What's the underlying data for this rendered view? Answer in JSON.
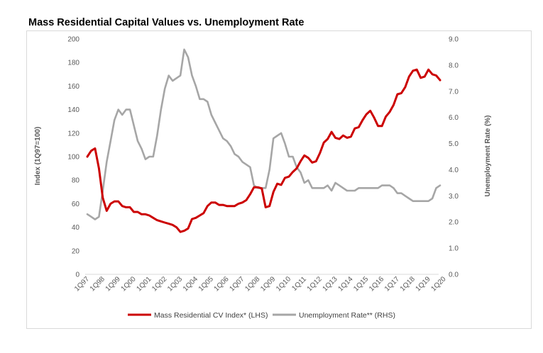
{
  "chart_data": {
    "type": "line",
    "title": "Mass Residential Capital Values vs. Unemployment Rate",
    "ylabel_left": "Index (1Q97=100)",
    "ylabel_right": "Unemployment Rate (%)",
    "ylim_left": [
      0,
      200
    ],
    "ylim_right": [
      0.0,
      9.0
    ],
    "yticks_left": [
      "0",
      "20",
      "40",
      "60",
      "80",
      "100",
      "120",
      "140",
      "160",
      "180",
      "200"
    ],
    "yticks_right": [
      "0.0",
      "1.0",
      "2.0",
      "3.0",
      "4.0",
      "5.0",
      "6.0",
      "7.0",
      "8.0",
      "9.0"
    ],
    "grid": false,
    "legend_position": "bottom",
    "x_tick_labels": [
      "1Q97",
      "1Q98",
      "1Q99",
      "1Q00",
      "1Q01",
      "1Q02",
      "1Q03",
      "1Q04",
      "1Q05",
      "1Q06",
      "1Q07",
      "1Q08",
      "1Q09",
      "1Q10",
      "1Q11",
      "1Q12",
      "1Q13",
      "1Q14",
      "1Q15",
      "1Q16",
      "1Q17",
      "1Q18",
      "1Q19",
      "1Q20"
    ],
    "series": [
      {
        "name": "Mass Residential CV Index* (LHS)",
        "axis": "left",
        "color": "#cc0000",
        "x_start": "1Q97",
        "frequency": "quarterly",
        "values": [
          100,
          105,
          107,
          90,
          65,
          54,
          60,
          62,
          62,
          58,
          57,
          57,
          53,
          53,
          51,
          51,
          50,
          48,
          46,
          45,
          44,
          43,
          42,
          40,
          36,
          37,
          39,
          47,
          48,
          50,
          52,
          58,
          61,
          61,
          59,
          59,
          58,
          58,
          58,
          60,
          61,
          63,
          68,
          74,
          74,
          73,
          57,
          58,
          70,
          77,
          76,
          82,
          83,
          87,
          90,
          96,
          101,
          99,
          95,
          96,
          103,
          112,
          115,
          121,
          116,
          115,
          118,
          116,
          117,
          124,
          125,
          131,
          136,
          139,
          133,
          126,
          126,
          134,
          138,
          144,
          153,
          154,
          159,
          168,
          173,
          174,
          167,
          168,
          174,
          170,
          169,
          165
        ]
      },
      {
        "name": "Unemployment Rate** (RHS)",
        "axis": "right",
        "color": "#a6a6a6",
        "x_start": "1Q97",
        "frequency": "quarterly",
        "values": [
          2.3,
          2.2,
          2.1,
          2.2,
          3.2,
          4.3,
          5.1,
          5.9,
          6.3,
          6.1,
          6.3,
          6.3,
          5.7,
          5.1,
          4.8,
          4.4,
          4.5,
          4.5,
          5.3,
          6.3,
          7.1,
          7.6,
          7.4,
          7.5,
          7.6,
          8.6,
          8.3,
          7.6,
          7.2,
          6.7,
          6.7,
          6.6,
          6.1,
          5.8,
          5.5,
          5.2,
          5.1,
          4.9,
          4.6,
          4.5,
          4.3,
          4.2,
          4.1,
          3.4,
          3.3,
          3.3,
          3.3,
          4.0,
          5.2,
          5.3,
          5.4,
          5.0,
          4.5,
          4.5,
          4.1,
          3.9,
          3.5,
          3.6,
          3.3,
          3.3,
          3.3,
          3.3,
          3.4,
          3.2,
          3.5,
          3.4,
          3.3,
          3.2,
          3.2,
          3.2,
          3.3,
          3.3,
          3.3,
          3.3,
          3.3,
          3.3,
          3.4,
          3.4,
          3.4,
          3.3,
          3.1,
          3.1,
          3.0,
          2.9,
          2.8,
          2.8,
          2.8,
          2.8,
          2.8,
          2.9,
          3.3,
          3.4
        ]
      }
    ]
  }
}
